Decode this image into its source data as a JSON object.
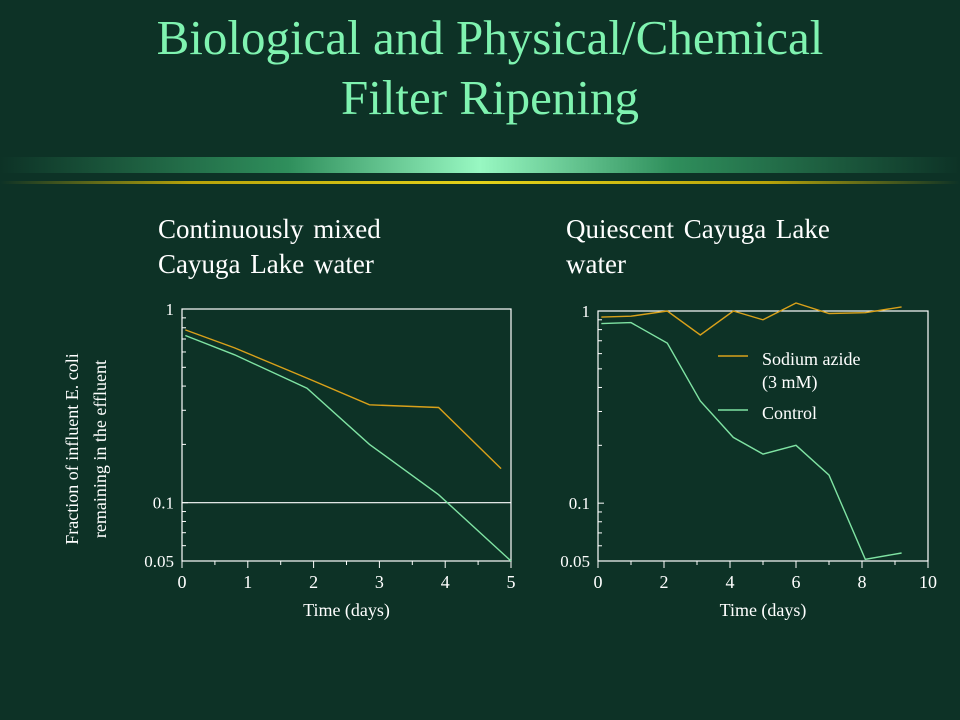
{
  "slide": {
    "title_line1": "Biological and Physical/Chemical",
    "title_line2": "Filter Ripening"
  },
  "colors": {
    "background": "#0d3226",
    "title": "#7ff3b0",
    "sodium_azide": "#d9a11a",
    "control": "#7fe3a3",
    "text": "#ffffff"
  },
  "chart_data": [
    {
      "type": "line",
      "title_line1": "Continuously mixed",
      "title_line2": "Cayuga Lake water",
      "xlabel": "Time (days)",
      "ylabel_line1": "Fraction of influent E. coli",
      "ylabel_line2": "remaining in the effluent",
      "y_scale": "log",
      "xlim": [
        0,
        5
      ],
      "ylim": [
        0.05,
        1
      ],
      "x_ticks": [
        0,
        1,
        2,
        3,
        4,
        5
      ],
      "y_tick_labels": [
        1,
        0.1,
        0.05
      ],
      "reference_line_y": 0.1,
      "series": [
        {
          "color": "#d9a11a",
          "x": [
            0.05,
            0.8,
            1.9,
            2.85,
            3.9,
            4.85
          ],
          "y": [
            0.78,
            0.63,
            0.44,
            0.32,
            0.31,
            0.15
          ]
        },
        {
          "color": "#7fe3a3",
          "x": [
            0.05,
            0.8,
            1.9,
            2.85,
            3.9,
            5.0
          ],
          "y": [
            0.73,
            0.58,
            0.39,
            0.2,
            0.11,
            0.05
          ]
        }
      ]
    },
    {
      "type": "line",
      "title_line1": "Quiescent Cayuga Lake",
      "title_line2": "water",
      "xlabel": "Time (days)",
      "y_scale": "log",
      "xlim": [
        0,
        10
      ],
      "ylim": [
        0.05,
        1
      ],
      "x_ticks": [
        0,
        2,
        4,
        6,
        8,
        10
      ],
      "y_tick_labels": [
        1,
        0.1,
        0.05
      ],
      "legend": [
        {
          "label_line1": "Sodium azide",
          "label_line2": "(3 mM)",
          "color": "#d9a11a"
        },
        {
          "label_line1": "Control",
          "label_line2": "",
          "color": "#7fe3a3"
        }
      ],
      "series": [
        {
          "color": "#d9a11a",
          "x": [
            0.1,
            1.0,
            2.1,
            3.1,
            4.1,
            5.0,
            6.0,
            7.0,
            8.1,
            9.2
          ],
          "y": [
            0.93,
            0.94,
            1.0,
            0.75,
            1.0,
            0.9,
            1.1,
            0.97,
            0.98,
            1.05
          ]
        },
        {
          "color": "#7fe3a3",
          "x": [
            0.1,
            1.0,
            2.1,
            3.1,
            4.1,
            5.0,
            6.0,
            7.0,
            8.1,
            9.2
          ],
          "y": [
            0.86,
            0.87,
            0.68,
            0.34,
            0.22,
            0.18,
            0.2,
            0.14,
            0.051,
            0.055
          ]
        }
      ]
    }
  ]
}
